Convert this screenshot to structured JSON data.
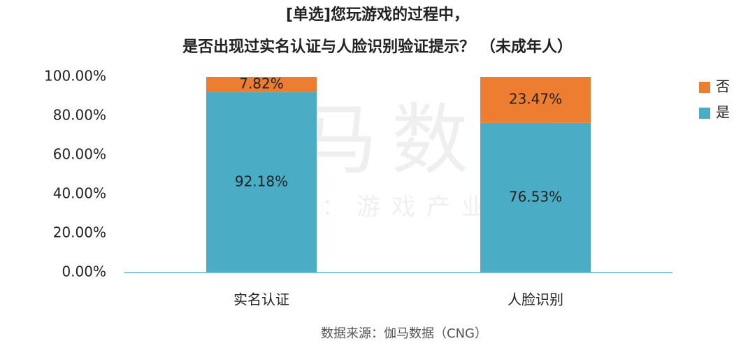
{
  "chart_data": {
    "type": "stacked_bar",
    "title": [
      "[单选]您玩游戏的过程中，",
      "是否出现过实名认证与人脸识别验证提示？  （未成年人）"
    ],
    "categories": [
      "实名认证",
      "人脸识别"
    ],
    "series": [
      {
        "name": "是",
        "color": "#4bacc6",
        "values": [
          92.18,
          76.53
        ],
        "value_labels": [
          "92.18%",
          "76.53%"
        ]
      },
      {
        "name": "否",
        "color": "#ed7d31",
        "values": [
          7.82,
          23.47
        ],
        "value_labels": [
          "7.82%",
          "23.47%"
        ]
      }
    ],
    "ylim": [
      0,
      100
    ],
    "yticks": [
      {
        "value": 0,
        "label": "0.00%"
      },
      {
        "value": 20,
        "label": "20.00%"
      },
      {
        "value": 40,
        "label": "40.00%"
      },
      {
        "value": 60,
        "label": "60.00%"
      },
      {
        "value": 80,
        "label": "80.00%"
      },
      {
        "value": 100,
        "label": "100.00%"
      }
    ],
    "legend_position": "right",
    "watermark": [
      "伽马数据",
      "微信号：游戏产业报告"
    ],
    "source": "数据来源：伽马数据（CNG）"
  }
}
